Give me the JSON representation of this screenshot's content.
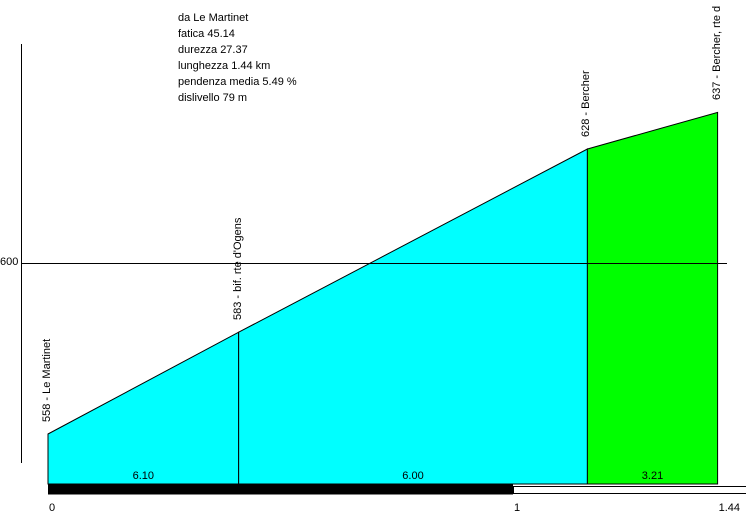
{
  "header": {
    "lines": [
      "da Le Martinet",
      "fatica 45.14",
      "durezza 27.37",
      "lunghezza 1.44 km",
      "pendenza media 5.49 %",
      "dislivello 79 m"
    ]
  },
  "chart_data": {
    "type": "area",
    "title": "da Le Martinet",
    "stats": {
      "fatica": 45.14,
      "durezza": 27.37,
      "lunghezza_km": 1.44,
      "pendenza_media_pct": 5.49,
      "dislivello_m": 79
    },
    "points": [
      {
        "km": 0.0,
        "elev_m": 558,
        "label": "558 - Le Martinet"
      },
      {
        "km": 0.41,
        "elev_m": 583,
        "label": "583 - bif. rte d'Ogens"
      },
      {
        "km": 1.16,
        "elev_m": 628,
        "label": "628 - Bercher"
      },
      {
        "km": 1.44,
        "elev_m": 637,
        "label": "637 - Bercher, rte d"
      }
    ],
    "segments": [
      {
        "from_km": 0.0,
        "to_km": 0.41,
        "gradient_label": "6.10",
        "color": "#00ffff"
      },
      {
        "from_km": 0.41,
        "to_km": 1.16,
        "gradient_label": "6.00",
        "color": "#00ffff"
      },
      {
        "from_km": 1.16,
        "to_km": 1.44,
        "gradient_label": "3.21",
        "color": "#00ff00"
      }
    ],
    "y_gridlines": [
      {
        "elev_m": 600,
        "label": "600"
      }
    ],
    "x_ticks": [
      {
        "km": 0,
        "label": "0"
      },
      {
        "km": 1,
        "label": "1"
      },
      {
        "km": 1.44,
        "label": "1.44"
      }
    ],
    "scale_bar": {
      "black_from_km": 0,
      "black_to_km": 1,
      "white_from_km": 1,
      "white_to_km": 2
    },
    "xlabel": "",
    "ylabel": "",
    "xlim": [
      0,
      1.44
    ],
    "ylim_m": [
      551,
      654
    ],
    "grid": "single-line-600",
    "colors": {
      "fill_main": "#00ffff",
      "fill_last": "#00ff00",
      "line": "#000000",
      "background": "#ffffff"
    }
  }
}
